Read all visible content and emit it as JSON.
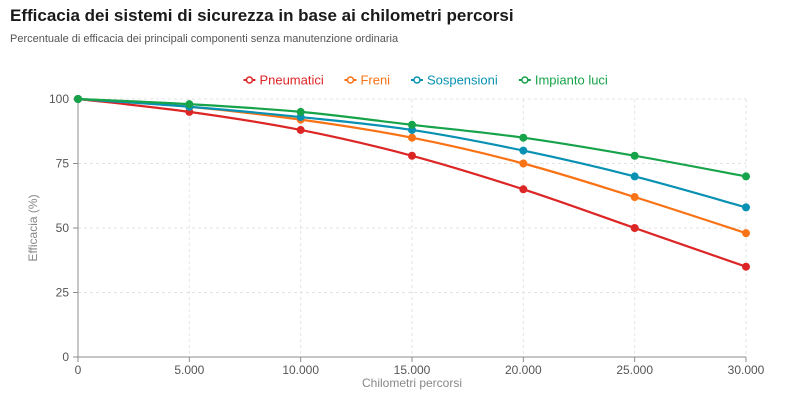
{
  "header": {
    "title": "Efficacia dei sistemi di sicurezza in base ai chilometri percorsi",
    "subtitle": "Percentuale di efficacia dei principali componenti senza manutenzione ordinaria"
  },
  "chart_data": {
    "type": "line",
    "title": "Efficacia dei sistemi di sicurezza in base ai chilometri percorsi",
    "subtitle": "Percentuale di efficacia dei principali componenti senza manutenzione ordinaria",
    "xlabel": "Chilometri percorsi",
    "ylabel": "Efficacia (%)",
    "x": [
      0,
      5000,
      10000,
      15000,
      20000,
      25000,
      30000
    ],
    "x_tick_labels": [
      "0",
      "5.000",
      "10.000",
      "15.000",
      "20.000",
      "25.000",
      "30.000"
    ],
    "y_ticks": [
      0,
      25,
      50,
      75,
      100
    ],
    "xlim": [
      0,
      30000
    ],
    "ylim": [
      0,
      100
    ],
    "grid": true,
    "legend_position": "top-center",
    "series": [
      {
        "name": "Pneumatici",
        "color": "#dc2626",
        "values": [
          100,
          95,
          88,
          78,
          65,
          50,
          35
        ]
      },
      {
        "name": "Freni",
        "color": "#f97316",
        "values": [
          100,
          97,
          92,
          85,
          75,
          62,
          48
        ]
      },
      {
        "name": "Sospensioni",
        "color": "#0891b2",
        "values": [
          100,
          97,
          93,
          88,
          80,
          70,
          58
        ]
      },
      {
        "name": "Impianto luci",
        "color": "#16a34a",
        "values": [
          100,
          98,
          95,
          90,
          85,
          78,
          70
        ]
      }
    ]
  }
}
